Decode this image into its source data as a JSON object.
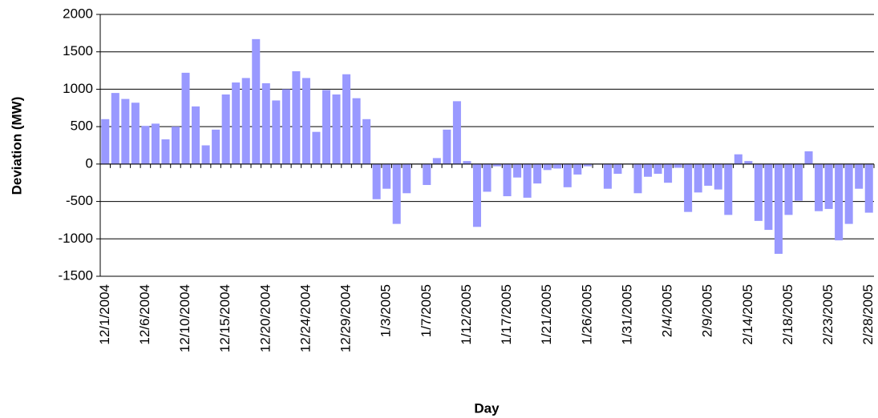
{
  "chart_data": {
    "type": "bar",
    "x_label": "Day",
    "y_label": "Deviation (MW)",
    "categories": [
      "12/1/2004",
      null,
      null,
      null,
      "12/6/2004",
      null,
      null,
      null,
      "12/10/2004",
      null,
      null,
      null,
      "12/15/2004",
      null,
      null,
      null,
      "12/20/2004",
      null,
      null,
      null,
      "12/24/2004",
      null,
      null,
      null,
      "12/29/2004",
      null,
      null,
      null,
      "1/3/2005",
      null,
      null,
      null,
      "1/7/2005",
      null,
      null,
      null,
      "1/12/2005",
      null,
      null,
      null,
      "1/17/2005",
      null,
      null,
      null,
      "1/21/2005",
      null,
      null,
      null,
      "1/26/2005",
      null,
      null,
      null,
      "1/31/2005",
      null,
      null,
      null,
      "2/4/2005",
      null,
      null,
      null,
      "2/9/2005",
      null,
      null,
      null,
      "2/14/2005",
      null,
      null,
      null,
      "2/18/2005",
      null,
      null,
      null,
      "2/23/2005",
      null,
      null,
      null,
      "2/28/2005"
    ],
    "values": [
      600,
      950,
      870,
      820,
      510,
      540,
      330,
      500,
      1220,
      770,
      250,
      460,
      930,
      1090,
      1150,
      1670,
      1080,
      850,
      1000,
      1240,
      1150,
      430,
      990,
      930,
      1200,
      880,
      600,
      -470,
      -330,
      -800,
      -390,
      0,
      -280,
      80,
      460,
      840,
      40,
      -840,
      -370,
      -30,
      -430,
      -180,
      -450,
      -260,
      -80,
      -60,
      -310,
      -140,
      -30,
      0,
      -330,
      -130,
      0,
      -390,
      -170,
      -130,
      -250,
      -50,
      -640,
      -380,
      -290,
      -340,
      -680,
      130,
      40,
      -760,
      -880,
      -1200,
      -680,
      -490,
      170,
      -630,
      -600,
      -1020,
      -800,
      -330,
      -650
    ],
    "color": "#9999ff",
    "ylim": [
      -1500,
      2000
    ],
    "yticks": [
      -1500,
      -1000,
      -500,
      0,
      500,
      1000,
      1500,
      2000
    ],
    "grid": true
  }
}
